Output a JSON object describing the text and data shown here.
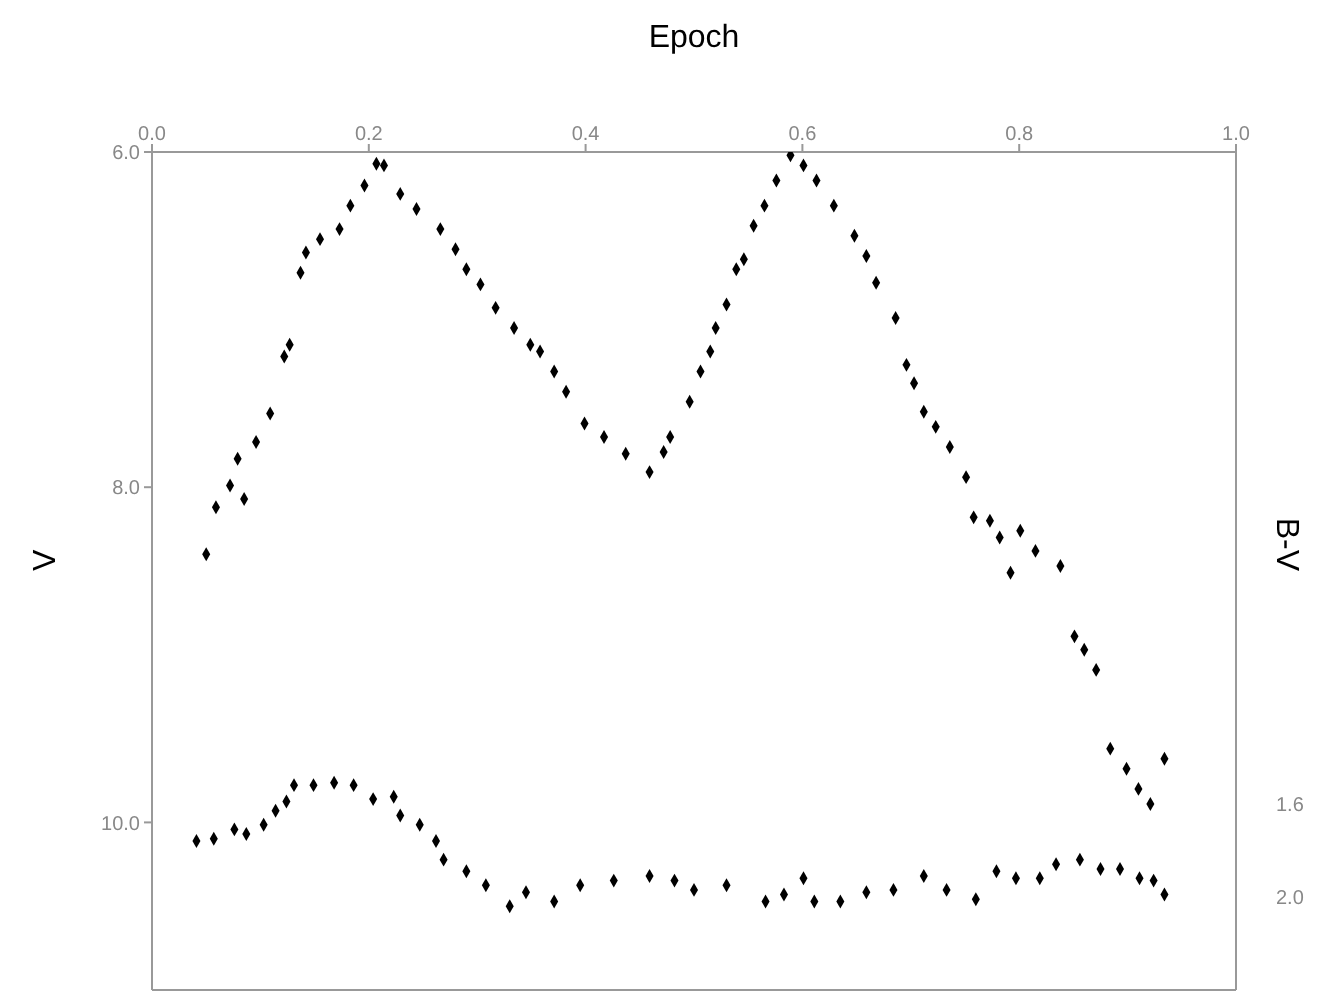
{
  "chart_data": {
    "type": "scatter",
    "xlabel": "Epoch",
    "ylabel": "V",
    "y2label": "B-V",
    "xlim": [
      0,
      1
    ],
    "xticks": [
      {
        "value": 0,
        "label": "0.0"
      },
      {
        "value": 0.2,
        "label": "0.2"
      },
      {
        "value": 0.4,
        "label": "0.4"
      },
      {
        "value": 0.6,
        "label": "0.6"
      },
      {
        "value": 0.8,
        "label": "0.8"
      },
      {
        "value": 1,
        "label": "1.0"
      }
    ],
    "ylim": [
      11,
      6
    ],
    "yticks": [
      {
        "value": 6,
        "label": "6.0"
      },
      {
        "value": 8,
        "label": "8.0"
      },
      {
        "value": 10,
        "label": "10.0"
      }
    ],
    "y2lim": [
      2.4,
      -1.2
    ],
    "y2ticks": [
      {
        "value": 1.6,
        "label": "1.6"
      },
      {
        "value": 2,
        "label": "2.0"
      }
    ],
    "marker": "diamond",
    "series": [
      {
        "color": "#000000",
        "x": [
          0.05,
          0.059,
          0.072,
          0.079,
          0.085,
          0.096,
          0.109,
          0.122,
          0.127,
          0.137,
          0.142,
          0.155,
          0.173,
          0.183,
          0.196,
          0.207,
          0.214,
          0.229,
          0.244,
          0.266,
          0.28,
          0.29,
          0.303,
          0.317,
          0.334,
          0.349,
          0.358,
          0.371,
          0.382,
          0.399,
          0.417,
          0.437,
          0.459,
          0.472,
          0.478,
          0.496,
          0.506,
          0.515,
          0.52,
          0.53,
          0.539,
          0.546,
          0.555,
          0.565,
          0.576,
          0.589,
          0.601,
          0.613,
          0.629,
          0.648,
          0.659,
          0.668,
          0.686,
          0.696,
          0.703,
          0.712,
          0.723,
          0.736,
          0.751,
          0.758,
          0.773,
          0.782,
          0.792,
          0.801,
          0.815,
          0.838,
          0.851,
          0.86,
          0.871,
          0.884,
          0.899,
          0.91,
          0.921,
          0.934
        ],
        "values": [
          8.4,
          8.12,
          7.99,
          7.83,
          8.07,
          7.73,
          7.56,
          7.22,
          7.15,
          6.72,
          6.6,
          6.52,
          6.46,
          6.32,
          6.2,
          6.07,
          6.08,
          6.25,
          6.34,
          6.46,
          6.58,
          6.7,
          6.79,
          6.93,
          7.05,
          7.15,
          7.19,
          7.31,
          7.43,
          7.62,
          7.7,
          7.8,
          7.91,
          7.79,
          7.7,
          7.49,
          7.31,
          7.19,
          7.05,
          6.91,
          6.7,
          6.64,
          6.44,
          6.32,
          6.17,
          6.02,
          6.08,
          6.17,
          6.32,
          6.5,
          6.62,
          6.78,
          6.99,
          7.27,
          7.38,
          7.55,
          7.64,
          7.76,
          7.94,
          8.18,
          8.2,
          8.3,
          8.51,
          8.26,
          8.38,
          8.47,
          8.89,
          8.97,
          9.09,
          9.56,
          9.68,
          9.8,
          9.89,
          9.62
        ]
      },
      {
        "color": "#000000",
        "axis": "y2",
        "x": [
          0.041,
          0.057,
          0.076,
          0.087,
          0.103,
          0.114,
          0.124,
          0.131,
          0.149,
          0.168,
          0.186,
          0.204,
          0.223,
          0.229,
          0.247,
          0.262,
          0.269,
          0.29,
          0.308,
          0.33,
          0.345,
          0.371,
          0.395,
          0.426,
          0.459,
          0.482,
          0.5,
          0.53,
          0.566,
          0.583,
          0.601,
          0.611,
          0.635,
          0.659,
          0.684,
          0.712,
          0.733,
          0.76,
          0.779,
          0.797,
          0.819,
          0.834,
          0.856,
          0.875,
          0.893,
          0.911,
          0.924,
          0.934
        ],
        "values": [
          1.76,
          1.75,
          1.71,
          1.73,
          1.69,
          1.63,
          1.59,
          1.52,
          1.52,
          1.51,
          1.52,
          1.58,
          1.57,
          1.65,
          1.69,
          1.76,
          1.84,
          1.89,
          1.95,
          2.04,
          1.98,
          2.02,
          1.95,
          1.93,
          1.91,
          1.93,
          1.97,
          1.95,
          2.02,
          1.99,
          1.92,
          2.02,
          2.02,
          1.98,
          1.97,
          1.91,
          1.97,
          2.01,
          1.89,
          1.92,
          1.92,
          1.86,
          1.84,
          1.88,
          1.88,
          1.92,
          1.93,
          1.99
        ]
      }
    ]
  }
}
